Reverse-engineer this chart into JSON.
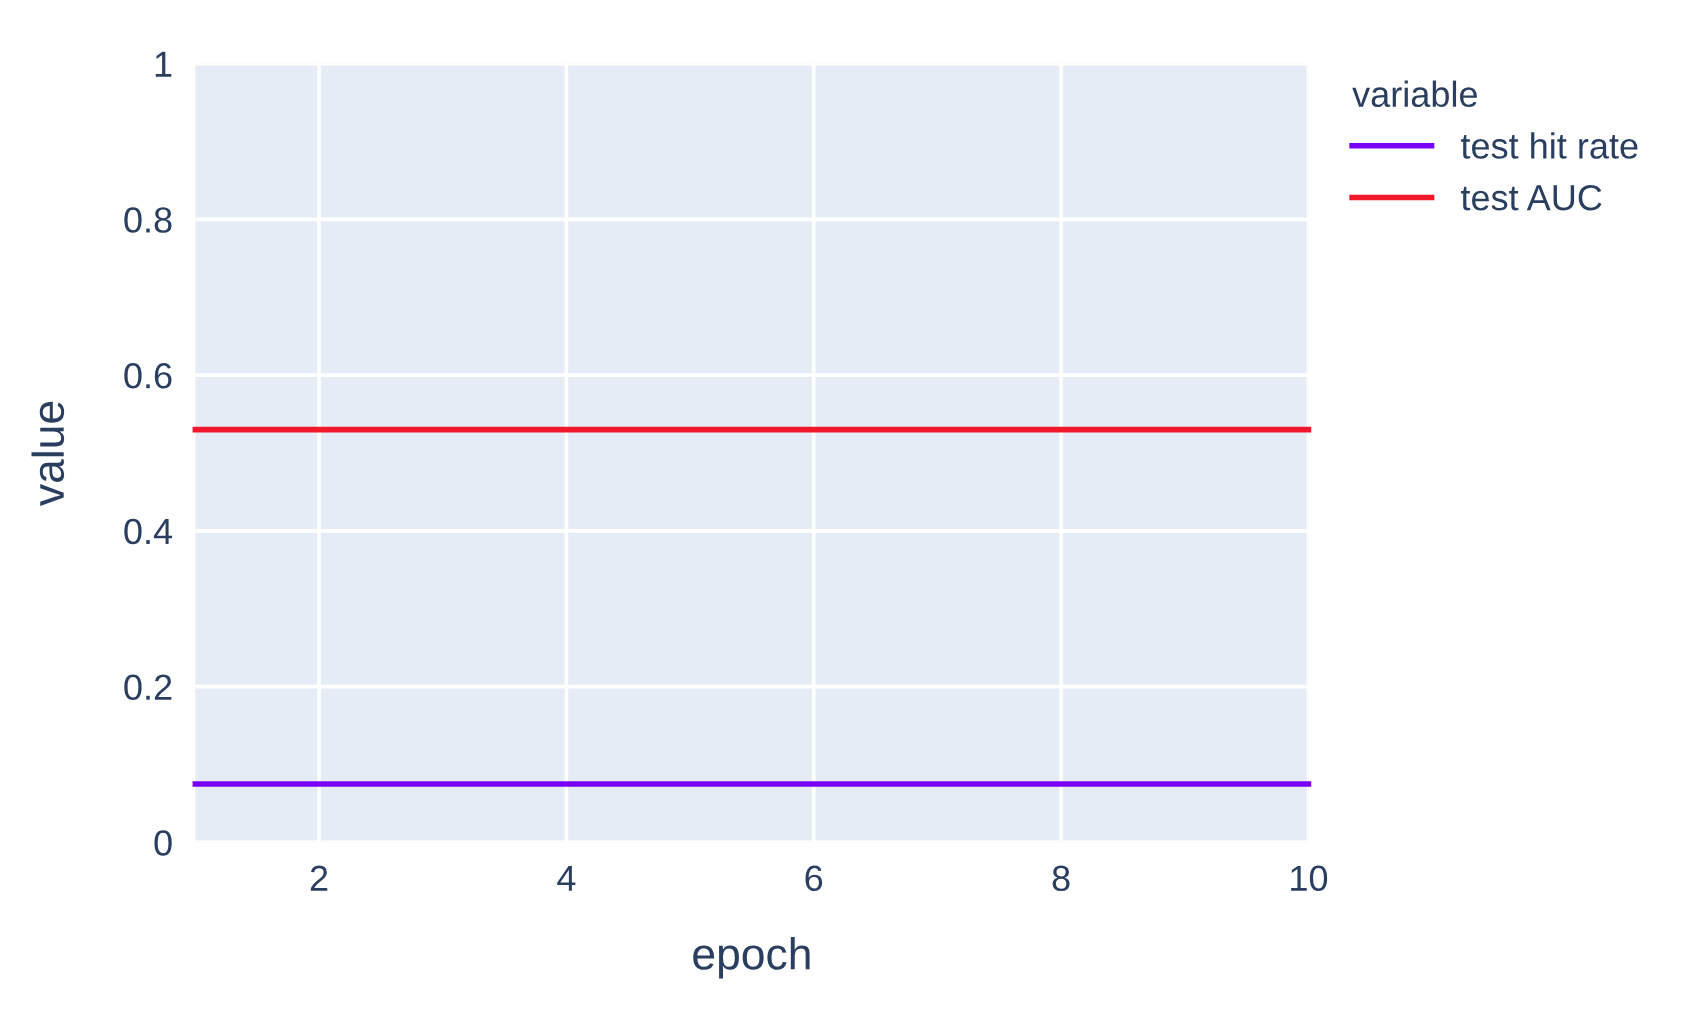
{
  "chart_data": {
    "type": "line",
    "xlabel": "epoch",
    "ylabel": "value",
    "legend_title": "variable",
    "x": [
      1,
      10
    ],
    "series": [
      {
        "name": "test hit rate",
        "color": "#7a00f5",
        "values": [
          0.075,
          0.075
        ]
      },
      {
        "name": "test AUC",
        "color": "#f0182a",
        "values": [
          0.53,
          0.53
        ]
      }
    ],
    "xlim": [
      1,
      10
    ],
    "xticks": [
      2,
      4,
      6,
      8,
      10
    ],
    "ylim": [
      0,
      1
    ],
    "yticks": [
      0,
      0.2,
      0.4,
      0.6,
      0.8,
      1
    ],
    "grid": true,
    "legend": "top right",
    "marker": "none",
    "line_style": "solid"
  }
}
